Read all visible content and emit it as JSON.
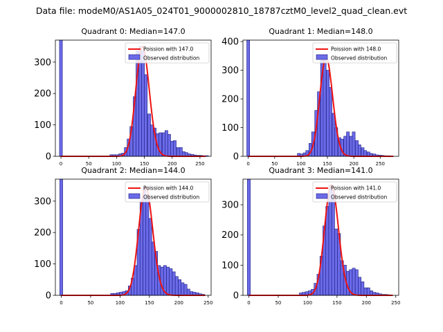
{
  "suptitle": "Data file: modeM0/AS1A05_024T01_9000002810_18787cztM0_level2_quad_clean.evt",
  "colors": {
    "bars": "#6b6be8",
    "bar_edge": "#1a1a80",
    "curve": "#ee1111"
  },
  "legend_labels": {
    "observed": "Observed distribution"
  },
  "chart_data": [
    {
      "type": "bar",
      "title": "Quadrant 0: Median=147.0",
      "poisson_label": "Poission with 147.0",
      "mean": 147.0,
      "peak": 350,
      "xlim": [
        -10,
        270
      ],
      "ylim": [
        0,
        370
      ],
      "xticks": [
        0,
        50,
        100,
        150,
        200,
        250
      ],
      "yticks": [
        0,
        100,
        200,
        300
      ],
      "bin_width": 5.2,
      "spike": {
        "x": 0,
        "value": 370
      },
      "bins": [
        {
          "x": 88,
          "v": 5
        },
        {
          "x": 93,
          "v": 5
        },
        {
          "x": 98,
          "v": 5
        },
        {
          "x": 104,
          "v": 8
        },
        {
          "x": 109,
          "v": 10
        },
        {
          "x": 114,
          "v": 28
        },
        {
          "x": 119,
          "v": 55
        },
        {
          "x": 124,
          "v": 95
        },
        {
          "x": 130,
          "v": 190
        },
        {
          "x": 135,
          "v": 335
        },
        {
          "x": 140,
          "v": 350
        },
        {
          "x": 145,
          "v": 335
        },
        {
          "x": 150,
          "v": 260
        },
        {
          "x": 156,
          "v": 135
        },
        {
          "x": 161,
          "v": 100
        },
        {
          "x": 166,
          "v": 90
        },
        {
          "x": 171,
          "v": 72
        },
        {
          "x": 176,
          "v": 75
        },
        {
          "x": 182,
          "v": 75
        },
        {
          "x": 187,
          "v": 82
        },
        {
          "x": 192,
          "v": 70
        },
        {
          "x": 197,
          "v": 48
        },
        {
          "x": 202,
          "v": 50
        },
        {
          "x": 208,
          "v": 28
        },
        {
          "x": 213,
          "v": 28
        },
        {
          "x": 218,
          "v": 15
        },
        {
          "x": 223,
          "v": 12
        },
        {
          "x": 228,
          "v": 8
        },
        {
          "x": 234,
          "v": 6
        },
        {
          "x": 239,
          "v": 4
        },
        {
          "x": 244,
          "v": 3
        },
        {
          "x": 249,
          "v": 3
        },
        {
          "x": 254,
          "v": 2
        },
        {
          "x": 260,
          "v": 2
        }
      ]
    },
    {
      "type": "bar",
      "title": "Quadrant 1: Median=148.0",
      "poisson_label": "Poission with 148.0",
      "mean": 148.0,
      "peak": 345,
      "xlim": [
        -10,
        285
      ],
      "ylim": [
        0,
        405
      ],
      "xticks": [
        0,
        50,
        100,
        150,
        200,
        250
      ],
      "yticks": [
        0,
        100,
        200,
        300,
        400
      ],
      "bin_width": 5.5,
      "spike": {
        "x": 0,
        "value": 405
      },
      "bins": [
        {
          "x": 93,
          "v": 10
        },
        {
          "x": 98,
          "v": 8
        },
        {
          "x": 104,
          "v": 12
        },
        {
          "x": 109,
          "v": 20
        },
        {
          "x": 115,
          "v": 45
        },
        {
          "x": 120,
          "v": 85
        },
        {
          "x": 126,
          "v": 160
        },
        {
          "x": 131,
          "v": 225
        },
        {
          "x": 137,
          "v": 340
        },
        {
          "x": 142,
          "v": 345
        },
        {
          "x": 148,
          "v": 300
        },
        {
          "x": 153,
          "v": 240
        },
        {
          "x": 159,
          "v": 150
        },
        {
          "x": 164,
          "v": 100
        },
        {
          "x": 170,
          "v": 65
        },
        {
          "x": 175,
          "v": 60
        },
        {
          "x": 181,
          "v": 70
        },
        {
          "x": 186,
          "v": 85
        },
        {
          "x": 192,
          "v": 70
        },
        {
          "x": 197,
          "v": 85
        },
        {
          "x": 203,
          "v": 55
        },
        {
          "x": 208,
          "v": 40
        },
        {
          "x": 214,
          "v": 30
        },
        {
          "x": 219,
          "v": 20
        },
        {
          "x": 225,
          "v": 15
        },
        {
          "x": 230,
          "v": 10
        },
        {
          "x": 236,
          "v": 8
        },
        {
          "x": 241,
          "v": 5
        },
        {
          "x": 247,
          "v": 4
        },
        {
          "x": 252,
          "v": 3
        },
        {
          "x": 258,
          "v": 2
        },
        {
          "x": 263,
          "v": 2
        }
      ]
    },
    {
      "type": "bar",
      "title": "Quadrant 2: Median=144.0",
      "poisson_label": "Poission with 144.0",
      "mean": 144.0,
      "peak": 345,
      "xlim": [
        -10,
        255
      ],
      "ylim": [
        0,
        370
      ],
      "xticks": [
        0,
        50,
        100,
        150,
        200,
        250
      ],
      "yticks": [
        0,
        100,
        200,
        300
      ],
      "bin_width": 5.0,
      "spike": {
        "x": 0,
        "value": 370
      },
      "bins": [
        {
          "x": 84,
          "v": 6
        },
        {
          "x": 89,
          "v": 6
        },
        {
          "x": 94,
          "v": 8
        },
        {
          "x": 99,
          "v": 10
        },
        {
          "x": 104,
          "v": 12
        },
        {
          "x": 109,
          "v": 15
        },
        {
          "x": 114,
          "v": 30
        },
        {
          "x": 119,
          "v": 55
        },
        {
          "x": 124,
          "v": 95
        },
        {
          "x": 129,
          "v": 210
        },
        {
          "x": 134,
          "v": 300
        },
        {
          "x": 139,
          "v": 345
        },
        {
          "x": 144,
          "v": 320
        },
        {
          "x": 149,
          "v": 245
        },
        {
          "x": 154,
          "v": 170
        },
        {
          "x": 159,
          "v": 140
        },
        {
          "x": 164,
          "v": 95
        },
        {
          "x": 169,
          "v": 90
        },
        {
          "x": 174,
          "v": 95
        },
        {
          "x": 179,
          "v": 90
        },
        {
          "x": 184,
          "v": 85
        },
        {
          "x": 189,
          "v": 75
        },
        {
          "x": 194,
          "v": 60
        },
        {
          "x": 199,
          "v": 50
        },
        {
          "x": 204,
          "v": 40
        },
        {
          "x": 209,
          "v": 35
        },
        {
          "x": 214,
          "v": 20
        },
        {
          "x": 219,
          "v": 12
        },
        {
          "x": 224,
          "v": 10
        },
        {
          "x": 229,
          "v": 8
        },
        {
          "x": 234,
          "v": 5
        },
        {
          "x": 239,
          "v": 3
        }
      ]
    },
    {
      "type": "bar",
      "title": "Quadrant 3: Median=141.0",
      "poisson_label": "Poission with 141.0",
      "mean": 141.0,
      "peak": 365,
      "xlim": [
        -10,
        255
      ],
      "ylim": [
        0,
        385
      ],
      "xticks": [
        0,
        50,
        100,
        150,
        200,
        250
      ],
      "yticks": [
        0,
        100,
        200,
        300
      ],
      "bin_width": 5.0,
      "spike": {
        "x": 0,
        "value": 385
      },
      "bins": [
        {
          "x": 86,
          "v": 8
        },
        {
          "x": 91,
          "v": 10
        },
        {
          "x": 96,
          "v": 12
        },
        {
          "x": 101,
          "v": 15
        },
        {
          "x": 106,
          "v": 20
        },
        {
          "x": 111,
          "v": 40
        },
        {
          "x": 116,
          "v": 70
        },
        {
          "x": 121,
          "v": 130
        },
        {
          "x": 126,
          "v": 230
        },
        {
          "x": 131,
          "v": 295
        },
        {
          "x": 136,
          "v": 365
        },
        {
          "x": 141,
          "v": 350
        },
        {
          "x": 146,
          "v": 220
        },
        {
          "x": 151,
          "v": 205
        },
        {
          "x": 156,
          "v": 115
        },
        {
          "x": 161,
          "v": 100
        },
        {
          "x": 166,
          "v": 80
        },
        {
          "x": 171,
          "v": 85
        },
        {
          "x": 176,
          "v": 90
        },
        {
          "x": 181,
          "v": 85
        },
        {
          "x": 186,
          "v": 60
        },
        {
          "x": 191,
          "v": 45
        },
        {
          "x": 196,
          "v": 25
        },
        {
          "x": 201,
          "v": 25
        },
        {
          "x": 206,
          "v": 15
        },
        {
          "x": 211,
          "v": 10
        },
        {
          "x": 216,
          "v": 8
        },
        {
          "x": 221,
          "v": 5
        },
        {
          "x": 226,
          "v": 3
        },
        {
          "x": 231,
          "v": 3
        },
        {
          "x": 236,
          "v": 2
        }
      ]
    }
  ]
}
